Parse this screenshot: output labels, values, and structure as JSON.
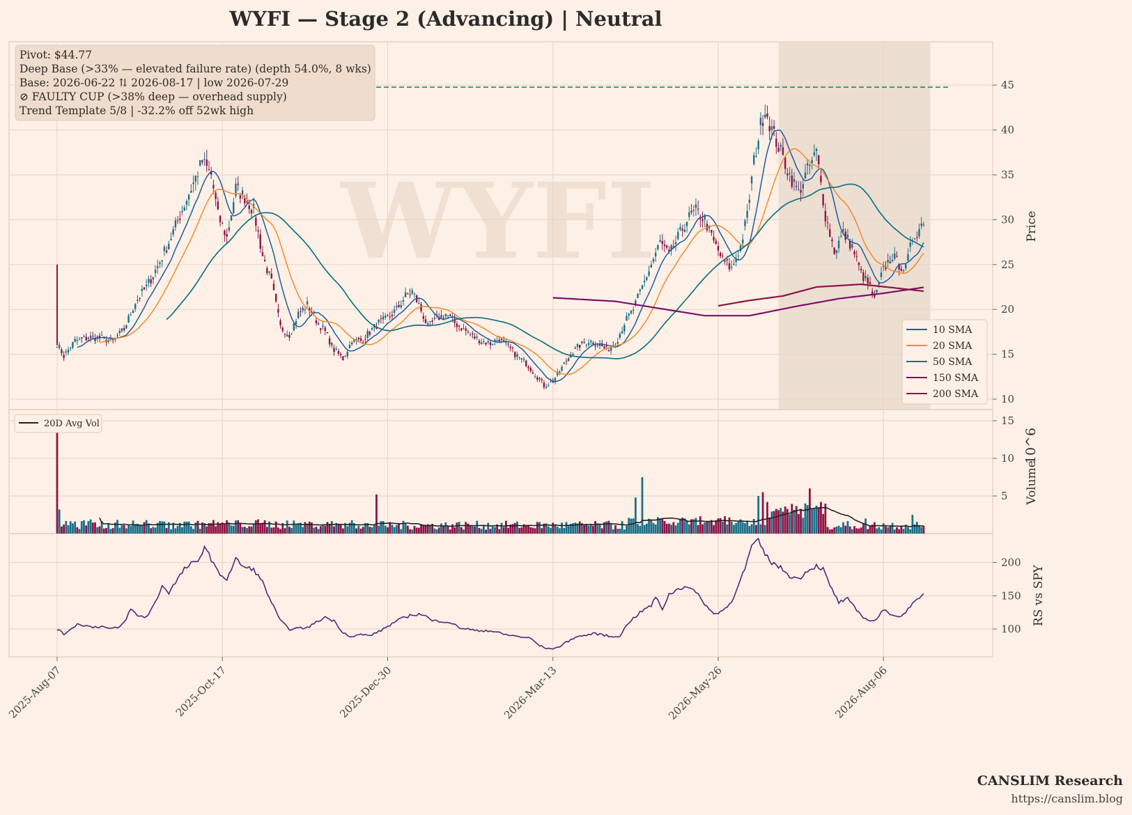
{
  "title": "WYFI  —  Stage 2 (Advancing)  |  Neutral",
  "watermark": "WYFI",
  "info_box": {
    "lines": [
      "Pivot: $44.77",
      "Deep Base (>33% — elevated failure rate)  (depth 54.0%, 8 wks)",
      "Base: 2026-06-22 ⇅ 2026-08-17  |  low 2026-07-29",
      "⊘ FAULTY CUP (>38% deep — overhead supply)",
      "Trend Template 5/8  |  -32.2% off 52wk high"
    ]
  },
  "footer": {
    "brand": "CANSLIM Research",
    "url": "https://canslim.blog"
  },
  "colors": {
    "background": "#fdf0e6",
    "up_candle": "#1b7088",
    "down_candle": "#8e1446",
    "sma10": "#1f5aa0",
    "sma20": "#f08a30",
    "sma50": "#127382",
    "sma150": "#7a0f6a",
    "sma200": "#8a1444",
    "pivot_line": "#1f9a55",
    "avg_vol": "#222222",
    "rs_line": "#4a2b7a",
    "base_shade": "#e6d6c9"
  },
  "chart_data": [
    {
      "type": "candlestick",
      "panel": "price",
      "ylabel": "Price",
      "ylim": [
        9.5,
        48.5
      ],
      "yticks": [
        10,
        15,
        20,
        25,
        30,
        35,
        40,
        45
      ],
      "x_tick_labels": [
        "2025-Aug-07",
        "2025-Oct-17",
        "2025-Dec-30",
        "2026-Mar-13",
        "2026-May-26",
        "2026-Aug-06"
      ],
      "pivot": 44.77,
      "base_shade_range": [
        "2026-06-22",
        "2026-08-17"
      ],
      "grid": true,
      "legend": {
        "placement": "lower-right",
        "entries": [
          "10 SMA",
          "20 SMA",
          "50 SMA",
          "150 SMA",
          "200 SMA"
        ]
      },
      "close_anchors": [
        [
          0,
          16.2
        ],
        [
          3,
          14.8
        ],
        [
          8,
          16.5
        ],
        [
          15,
          16.9
        ],
        [
          20,
          16.8
        ],
        [
          25,
          16.4
        ],
        [
          30,
          17.8
        ],
        [
          35,
          20.8
        ],
        [
          40,
          22.5
        ],
        [
          45,
          24.8
        ],
        [
          50,
          27.5
        ],
        [
          55,
          30.5
        ],
        [
          60,
          33.5
        ],
        [
          65,
          36.5
        ],
        [
          69,
          35.0
        ],
        [
          72,
          30.5
        ],
        [
          76,
          28.0
        ],
        [
          80,
          33.5
        ],
        [
          84,
          32.5
        ],
        [
          88,
          31.0
        ],
        [
          92,
          26.0
        ],
        [
          96,
          23.0
        ],
        [
          100,
          18.0
        ],
        [
          104,
          17.2
        ],
        [
          108,
          19.5
        ],
        [
          112,
          20.5
        ],
        [
          116,
          18.8
        ],
        [
          120,
          17.5
        ],
        [
          124,
          15.5
        ],
        [
          128,
          14.5
        ],
        [
          132,
          16.5
        ],
        [
          136,
          16.5
        ],
        [
          140,
          17.5
        ],
        [
          144,
          18.5
        ],
        [
          148,
          19.0
        ],
        [
          152,
          20.0
        ],
        [
          156,
          21.5
        ],
        [
          159,
          22.0
        ],
        [
          162,
          20.5
        ],
        [
          166,
          18.0
        ],
        [
          170,
          19.0
        ],
        [
          174,
          19.5
        ],
        [
          178,
          18.5
        ],
        [
          182,
          17.8
        ],
        [
          186,
          17.0
        ],
        [
          190,
          16.5
        ],
        [
          194,
          16.2
        ],
        [
          198,
          16.8
        ],
        [
          202,
          15.8
        ],
        [
          206,
          14.8
        ],
        [
          210,
          14.0
        ],
        [
          214,
          12.8
        ],
        [
          218,
          11.5
        ],
        [
          222,
          12.0
        ],
        [
          226,
          13.5
        ],
        [
          230,
          15.0
        ],
        [
          234,
          16.0
        ],
        [
          238,
          16.5
        ],
        [
          242,
          16.2
        ],
        [
          246,
          15.5
        ],
        [
          250,
          16.2
        ],
        [
          254,
          18.5
        ],
        [
          258,
          20.0
        ],
        [
          262,
          22.5
        ],
        [
          266,
          25.0
        ],
        [
          270,
          27.5
        ],
        [
          274,
          26.0
        ],
        [
          278,
          28.0
        ],
        [
          282,
          30.0
        ],
        [
          286,
          31.0
        ],
        [
          290,
          30.0
        ],
        [
          294,
          27.5
        ],
        [
          298,
          25.5
        ],
        [
          302,
          24.5
        ],
        [
          306,
          27.0
        ],
        [
          309,
          30.5
        ],
        [
          312,
          36.5
        ],
        [
          315,
          40.5
        ],
        [
          317,
          42.5
        ],
        [
          320,
          40.0
        ],
        [
          324,
          37.5
        ],
        [
          328,
          35.0
        ],
        [
          332,
          33.0
        ],
        [
          336,
          35.5
        ],
        [
          340,
          37.5
        ],
        [
          344,
          30.5
        ],
        [
          348,
          26.5
        ],
        [
          352,
          28.5
        ],
        [
          356,
          27.0
        ],
        [
          360,
          24.0
        ],
        [
          364,
          22.5
        ],
        [
          366,
          21.0
        ],
        [
          370,
          24.5
        ],
        [
          374,
          26.0
        ],
        [
          377,
          25.0
        ],
        [
          380,
          24.5
        ],
        [
          383,
          28.0
        ],
        [
          386,
          29.0
        ],
        [
          388,
          30.0
        ]
      ]
    },
    {
      "type": "bar",
      "panel": "volume",
      "ylabel": "Volume",
      "unit_label": "10^6",
      "ylim": [
        0,
        15.5
      ],
      "yticks": [
        5,
        10,
        15
      ],
      "legend": {
        "placement": "upper-left",
        "entries": [
          "20D Avg Vol"
        ]
      },
      "spikes": [
        [
          0,
          15.0
        ],
        [
          1,
          3.2
        ],
        [
          143,
          5.2
        ],
        [
          259,
          4.8
        ],
        [
          262,
          7.5
        ],
        [
          314,
          5.0
        ],
        [
          316,
          5.5
        ],
        [
          318,
          4.2
        ],
        [
          335,
          4.0
        ],
        [
          337,
          6.0
        ],
        [
          362,
          2.0
        ],
        [
          383,
          2.5
        ]
      ]
    },
    {
      "type": "line",
      "panel": "rs",
      "ylabel": "RS vs SPY",
      "ylim": [
        58,
        245
      ],
      "yticks": [
        100,
        150,
        200
      ],
      "rs_anchors": [
        [
          0,
          100
        ],
        [
          3,
          92
        ],
        [
          6,
          100
        ],
        [
          9,
          107
        ],
        [
          12,
          106
        ],
        [
          15,
          103
        ],
        [
          20,
          104
        ],
        [
          24,
          100
        ],
        [
          28,
          103
        ],
        [
          30,
          110
        ],
        [
          33,
          130
        ],
        [
          36,
          120
        ],
        [
          40,
          118
        ],
        [
          44,
          140
        ],
        [
          47,
          165
        ],
        [
          50,
          155
        ],
        [
          54,
          175
        ],
        [
          57,
          190
        ],
        [
          60,
          198
        ],
        [
          63,
          200
        ],
        [
          66,
          225
        ],
        [
          69,
          205
        ],
        [
          72,
          185
        ],
        [
          76,
          175
        ],
        [
          80,
          205
        ],
        [
          84,
          192
        ],
        [
          88,
          190
        ],
        [
          92,
          170
        ],
        [
          96,
          140
        ],
        [
          100,
          112
        ],
        [
          104,
          100
        ],
        [
          108,
          101
        ],
        [
          112,
          102
        ],
        [
          116,
          110
        ],
        [
          120,
          118
        ],
        [
          124,
          112
        ],
        [
          128,
          95
        ],
        [
          132,
          88
        ],
        [
          136,
          92
        ],
        [
          140,
          90
        ],
        [
          144,
          96
        ],
        [
          148,
          104
        ],
        [
          152,
          112
        ],
        [
          156,
          118
        ],
        [
          160,
          122
        ],
        [
          164,
          122
        ],
        [
          168,
          112
        ],
        [
          172,
          112
        ],
        [
          176,
          110
        ],
        [
          180,
          102
        ],
        [
          184,
          100
        ],
        [
          188,
          97
        ],
        [
          192,
          98
        ],
        [
          196,
          96
        ],
        [
          200,
          92
        ],
        [
          204,
          90
        ],
        [
          208,
          88
        ],
        [
          212,
          86
        ],
        [
          216,
          75
        ],
        [
          220,
          70
        ],
        [
          224,
          72
        ],
        [
          228,
          80
        ],
        [
          232,
          88
        ],
        [
          236,
          90
        ],
        [
          240,
          93
        ],
        [
          244,
          92
        ],
        [
          248,
          88
        ],
        [
          252,
          90
        ],
        [
          256,
          110
        ],
        [
          260,
          122
        ],
        [
          264,
          132
        ],
        [
          266,
          135
        ],
        [
          268,
          148
        ],
        [
          271,
          130
        ],
        [
          274,
          152
        ],
        [
          278,
          160
        ],
        [
          282,
          165
        ],
        [
          286,
          155
        ],
        [
          290,
          138
        ],
        [
          294,
          122
        ],
        [
          298,
          128
        ],
        [
          302,
          140
        ],
        [
          305,
          168
        ],
        [
          308,
          190
        ],
        [
          311,
          225
        ],
        [
          314,
          232
        ],
        [
          317,
          212
        ],
        [
          320,
          200
        ],
        [
          324,
          192
        ],
        [
          328,
          180
        ],
        [
          332,
          175
        ],
        [
          336,
          188
        ],
        [
          340,
          195
        ],
        [
          343,
          190
        ],
        [
          346,
          165
        ],
        [
          350,
          140
        ],
        [
          354,
          145
        ],
        [
          358,
          128
        ],
        [
          362,
          115
        ],
        [
          366,
          112
        ],
        [
          370,
          128
        ],
        [
          374,
          122
        ],
        [
          378,
          118
        ],
        [
          382,
          135
        ],
        [
          386,
          145
        ],
        [
          388,
          152
        ]
      ]
    }
  ]
}
